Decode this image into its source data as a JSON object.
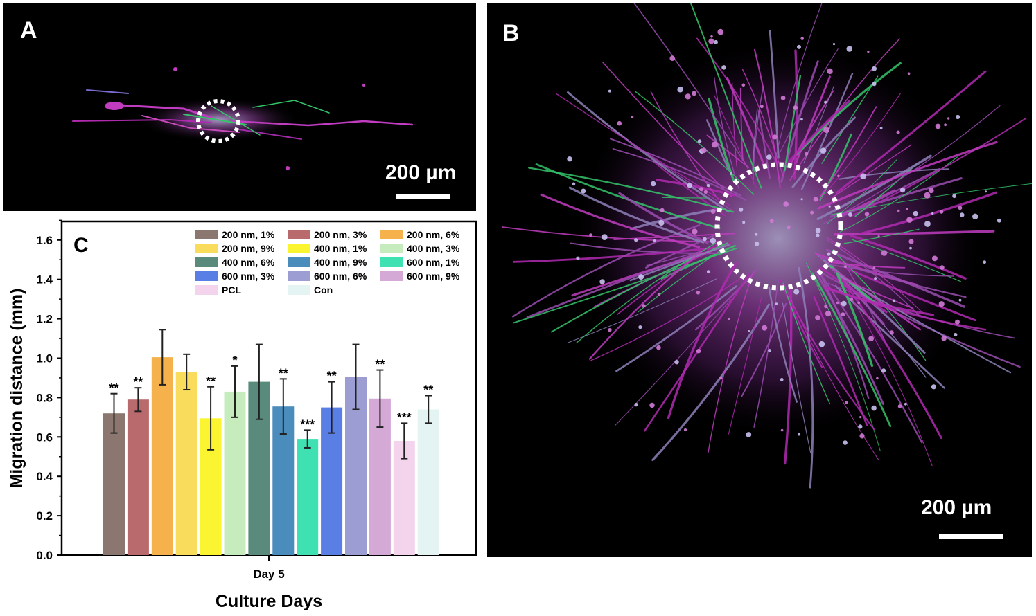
{
  "panel_a": {
    "label": "A",
    "scale_label": "200 µm"
  },
  "panel_b": {
    "label": "B",
    "scale_label": "200 µm"
  },
  "chart_data": {
    "type": "bar",
    "panel_label": "C",
    "title": "",
    "xlabel": "Culture Days",
    "ylabel": "Migration distance (mm)",
    "categories": [
      "Day 5"
    ],
    "ylim": [
      0,
      1.7
    ],
    "yticks": [
      "0.0",
      "0.2",
      "0.4",
      "0.6",
      "0.8",
      "1.0",
      "1.2",
      "1.4",
      "1.6"
    ],
    "legend_position": "top-right",
    "series": [
      {
        "name": "200 nm, 1%",
        "value": 0.72,
        "error": 0.1,
        "sig": "**",
        "color": "#8b776f"
      },
      {
        "name": "200 nm, 3%",
        "value": 0.79,
        "error": 0.06,
        "sig": "**",
        "color": "#b96a6d"
      },
      {
        "name": "200 nm, 6%",
        "value": 1.005,
        "error": 0.14,
        "sig": "",
        "color": "#f5b24c"
      },
      {
        "name": "200 nm, 9%",
        "value": 0.93,
        "error": 0.09,
        "sig": "",
        "color": "#f9dc5c"
      },
      {
        "name": "400 nm, 1%",
        "value": 0.695,
        "error": 0.16,
        "sig": "**",
        "color": "#fbf531"
      },
      {
        "name": "400 nm, 3%",
        "value": 0.83,
        "error": 0.13,
        "sig": "*",
        "color": "#c6ebbd"
      },
      {
        "name": "400 nm, 6%",
        "value": 0.88,
        "error": 0.19,
        "sig": "",
        "color": "#5a8a7b"
      },
      {
        "name": "400 nm, 9%",
        "value": 0.755,
        "error": 0.14,
        "sig": "**",
        "color": "#4a8cbc"
      },
      {
        "name": "600 nm, 1%",
        "value": 0.59,
        "error": 0.045,
        "sig": "***",
        "color": "#3fe0b2"
      },
      {
        "name": "600 nm, 3%",
        "value": 0.75,
        "error": 0.13,
        "sig": "**",
        "color": "#5a7fe4"
      },
      {
        "name": "600 nm, 6%",
        "value": 0.905,
        "error": 0.165,
        "sig": "",
        "color": "#9c9ed3"
      },
      {
        "name": "600 nm, 9%",
        "value": 0.795,
        "error": 0.145,
        "sig": "**",
        "color": "#d4a9d6"
      },
      {
        "name": "PCL",
        "value": 0.58,
        "error": 0.09,
        "sig": "***",
        "color": "#f4d3ec"
      },
      {
        "name": "Con",
        "value": 0.74,
        "error": 0.07,
        "sig": "**",
        "color": "#e4f4f3"
      }
    ]
  }
}
